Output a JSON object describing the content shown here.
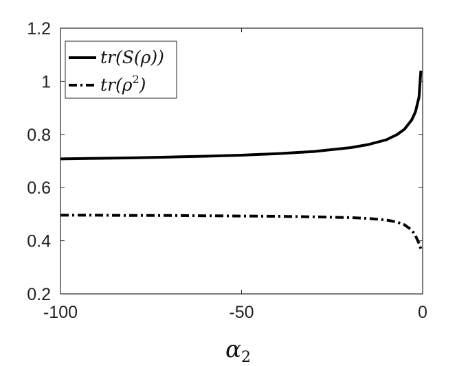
{
  "chart_data": {
    "type": "line",
    "title": "",
    "xlabel": {
      "base": "α",
      "sub": "2"
    },
    "ylabel": "",
    "xlim": [
      -100,
      0
    ],
    "ylim": [
      0.2,
      1.2
    ],
    "xticks": [
      {
        "value": -100,
        "label": "-100"
      },
      {
        "value": -50,
        "label": "-50"
      },
      {
        "value": 0,
        "label": "0"
      }
    ],
    "yticks": [
      {
        "value": 0.2,
        "label": "0.2"
      },
      {
        "value": 0.4,
        "label": "0.4"
      },
      {
        "value": 0.6,
        "label": "0.6"
      },
      {
        "value": 0.8,
        "label": "0.8"
      },
      {
        "value": 1.0,
        "label": "1"
      },
      {
        "value": 1.2,
        "label": "1.2"
      }
    ],
    "grid": false,
    "legend_position": "top-left",
    "series": [
      {
        "name": "tr(S(ρ))",
        "legend_parts": {
          "main": "tr(S(ρ))",
          "sup": ""
        },
        "style": "solid",
        "color": "#000000",
        "x": [
          -100,
          -90,
          -80,
          -70,
          -60,
          -50,
          -40,
          -30,
          -20,
          -15,
          -10,
          -7,
          -5,
          -3,
          -2,
          -1,
          -0.5
        ],
        "y": [
          0.708,
          0.71,
          0.712,
          0.715,
          0.718,
          0.722,
          0.728,
          0.736,
          0.75,
          0.762,
          0.78,
          0.8,
          0.82,
          0.855,
          0.885,
          0.94,
          1.04
        ]
      },
      {
        "name": "tr(ρ²)",
        "legend_parts": {
          "main": "tr(ρ",
          "sup": "2",
          "close": ")"
        },
        "style": "dashdot",
        "color": "#000000",
        "x": [
          -100,
          -90,
          -80,
          -70,
          -60,
          -50,
          -40,
          -30,
          -20,
          -15,
          -10,
          -7,
          -5,
          -3,
          -2,
          -1,
          -0.5
        ],
        "y": [
          0.496,
          0.496,
          0.495,
          0.495,
          0.494,
          0.493,
          0.492,
          0.49,
          0.487,
          0.484,
          0.478,
          0.47,
          0.46,
          0.44,
          0.42,
          0.39,
          0.37
        ]
      }
    ]
  }
}
